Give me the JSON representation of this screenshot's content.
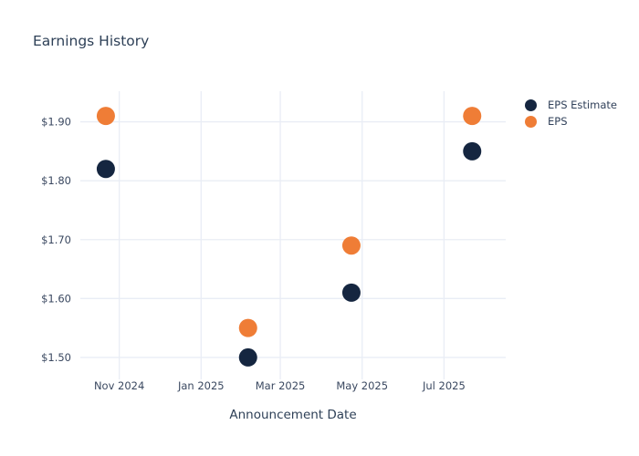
{
  "chart_data": {
    "type": "scatter",
    "title": "Earnings History",
    "xlabel": "Announcement Date",
    "ylabel": "",
    "grid": true,
    "legend_position": "right-outside-top",
    "background_color": "#ffffff",
    "grid_color": "#e9edf5",
    "title_color": "#2e4057",
    "tick_label_color": "#3a4860",
    "marker_radius": 10,
    "x_range": [
      "2024-10-03",
      "2025-08-16"
    ],
    "y_range": [
      1.472,
      1.952
    ],
    "x_ticks": [
      {
        "label": "Nov 2024",
        "date": "2024-11-01"
      },
      {
        "label": "Jan 2025",
        "date": "2025-01-01"
      },
      {
        "label": "Mar 2025",
        "date": "2025-03-01"
      },
      {
        "label": "May 2025",
        "date": "2025-05-01"
      },
      {
        "label": "Jul 2025",
        "date": "2025-07-01"
      }
    ],
    "y_ticks": [
      {
        "label": "$1.50",
        "value": 1.5
      },
      {
        "label": "$1.60",
        "value": 1.6
      },
      {
        "label": "$1.70",
        "value": 1.7
      },
      {
        "label": "$1.80",
        "value": 1.8
      },
      {
        "label": "$1.90",
        "value": 1.9
      }
    ],
    "series": [
      {
        "name": "EPS Estimate",
        "color": "#152640",
        "points": [
          {
            "date": "2024-10-22",
            "value": 1.82
          },
          {
            "date": "2025-02-05",
            "value": 1.5
          },
          {
            "date": "2025-04-23",
            "value": 1.61
          },
          {
            "date": "2025-07-22",
            "value": 1.85
          }
        ]
      },
      {
        "name": "EPS",
        "color": "#ef7d36",
        "points": [
          {
            "date": "2024-10-22",
            "value": 1.91
          },
          {
            "date": "2025-02-05",
            "value": 1.55
          },
          {
            "date": "2025-04-23",
            "value": 1.69
          },
          {
            "date": "2025-07-22",
            "value": 1.91
          }
        ]
      }
    ]
  }
}
